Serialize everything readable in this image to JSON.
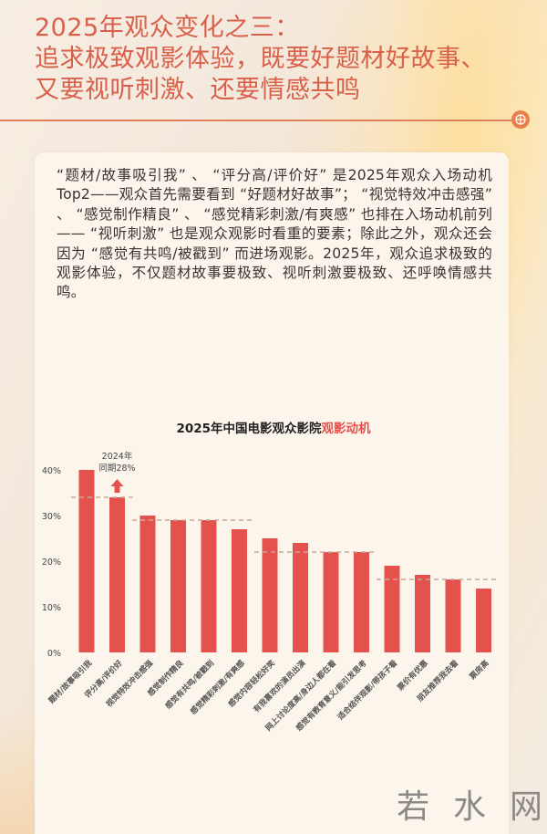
{
  "header": {
    "title_lines": [
      "2025年观众变化之三：",
      "追求极致观影体验，既要好题材好故事、",
      "又要视听刺激、还要情感共鸣"
    ],
    "accent_color": "#d9604a"
  },
  "body": {
    "paragraph": "“题材/故事吸引我” 、 “评分高/评价好” 是2025年观众入场动机Top2——观众首先需要看到 “好题材好故事”； “视觉特效冲击感强” 、 “感觉制作精良” 、 “感觉精彩刺激/有爽感” 也排在入场动机前列—— “视听刺激” 也是观众观影时看重的要素；除此之外，观众还会因为 “感觉有共鸣/被戳到” 而进场观影。2025年，观众追求极致的观影体验，不仅题材故事要极致、视听刺激要极致、还呼唤情感共鸣。"
  },
  "chart": {
    "title_prefix": "2025年中国电影观众影院",
    "title_highlight": "观影动机",
    "annotation_line1": "2024年",
    "annotation_line2": "同期28%",
    "bar_color": "#e5524d",
    "dash_color": "#c9a89c"
  },
  "chart_data": {
    "type": "bar",
    "title": "2025年中国电影观众影院观影动机",
    "xlabel": "",
    "ylabel": "",
    "ylim": [
      0,
      40
    ],
    "yticks": [
      "0%",
      "10%",
      "20%",
      "30%",
      "40%"
    ],
    "categories": [
      "题材/故事吸引我",
      "评分高/评价好",
      "视觉特效冲击感强",
      "感觉制作精良",
      "感觉有共鸣/被戳到",
      "感觉精彩刺激/有爽感",
      "感觉内容轻松好笑",
      "有我喜欢的演员出演",
      "网上讨论度高/身边人都在看",
      "感觉有教育意义/能引发思考",
      "适合结伴观影/带孩子看",
      "票价有优惠",
      "朋友推荐我去看",
      "票房高"
    ],
    "values": [
      40,
      34,
      30,
      29,
      29,
      27,
      25,
      24,
      22,
      22,
      19,
      17,
      16,
      14
    ],
    "reference_lines": [
      {
        "from": 0,
        "to": 1,
        "value": 34
      },
      {
        "from": 2,
        "to": 5,
        "value": 29
      },
      {
        "from": 6,
        "to": 9,
        "value": 22
      },
      {
        "from": 10,
        "to": 13,
        "value": 16
      }
    ],
    "annotations": [
      {
        "category_index": 1,
        "text": "2024年 同期28%",
        "arrow": "up"
      }
    ],
    "grid": false,
    "legend": null
  },
  "watermark": {
    "chars": [
      "若",
      "水",
      "网"
    ]
  }
}
